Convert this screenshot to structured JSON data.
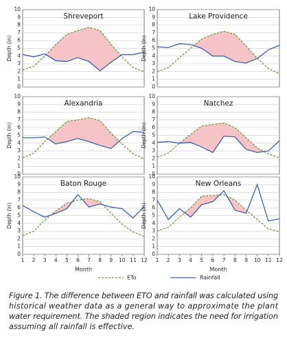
{
  "chart_data": [
    {
      "type": "line",
      "title": "Shreveport",
      "ylabel": "Depth (in)",
      "x": [
        1,
        2,
        3,
        4,
        5,
        6,
        7,
        8,
        9,
        10,
        11,
        12
      ],
      "xlim": [
        1,
        12
      ],
      "ylim": [
        0,
        10
      ],
      "yticks": [
        0,
        1,
        2,
        3,
        4,
        5,
        6,
        7,
        8,
        9,
        10
      ],
      "series": [
        {
          "name": "ETo",
          "color": "#6a9a3a",
          "values": [
            2.2,
            2.7,
            4.0,
            5.5,
            6.8,
            7.3,
            7.7,
            7.3,
            5.5,
            3.9,
            2.5,
            2.0
          ]
        },
        {
          "name": "Rainfall",
          "color": "#3b5fa8",
          "values": [
            4.2,
            3.9,
            4.3,
            3.4,
            3.3,
            3.8,
            3.3,
            2.1,
            3.2,
            4.2,
            4.2,
            4.5
          ]
        }
      ]
    },
    {
      "type": "line",
      "title": "Lake Providence",
      "ylabel": "Depth (in)",
      "x": [
        1,
        2,
        3,
        4,
        5,
        6,
        7,
        8,
        9,
        10,
        11,
        12
      ],
      "xlim": [
        1,
        12
      ],
      "ylim": [
        0,
        10
      ],
      "yticks": [
        0,
        1,
        2,
        3,
        4,
        5,
        6,
        7,
        8,
        9,
        10
      ],
      "series": [
        {
          "name": "ETo",
          "color": "#6a9a3a",
          "values": [
            2.0,
            2.5,
            3.8,
            5.0,
            6.2,
            6.8,
            7.2,
            6.8,
            5.3,
            3.7,
            2.4,
            1.7
          ]
        },
        {
          "name": "Rainfall",
          "color": "#3b5fa8",
          "values": [
            5.2,
            5.1,
            5.6,
            5.5,
            5.0,
            4.0,
            4.0,
            3.3,
            3.1,
            3.7,
            4.8,
            5.4
          ]
        }
      ]
    },
    {
      "type": "line",
      "title": "Alexandria",
      "ylabel": "Depth (in)",
      "x": [
        1,
        2,
        3,
        4,
        5,
        6,
        7,
        8,
        9,
        10,
        11,
        12
      ],
      "xlim": [
        1,
        12
      ],
      "ylim": [
        0,
        10
      ],
      "yticks": [
        0,
        1,
        2,
        3,
        4,
        5,
        6,
        7,
        8,
        9,
        10
      ],
      "series": [
        {
          "name": "ETo",
          "color": "#6a9a3a",
          "values": [
            2.1,
            2.7,
            4.2,
            5.5,
            6.8,
            7.0,
            7.3,
            6.9,
            5.3,
            3.9,
            2.6,
            2.0
          ]
        },
        {
          "name": "Rainfall",
          "color": "#3b5fa8",
          "values": [
            4.7,
            4.7,
            4.8,
            3.9,
            4.2,
            4.6,
            4.2,
            3.7,
            3.3,
            4.6,
            5.5,
            5.4
          ]
        }
      ]
    },
    {
      "type": "line",
      "title": "Natchez",
      "ylabel": "Depth (in)",
      "x": [
        1,
        2,
        3,
        4,
        5,
        6,
        7,
        8,
        9,
        10,
        11,
        12
      ],
      "xlim": [
        1,
        12
      ],
      "ylim": [
        0,
        10
      ],
      "yticks": [
        0,
        1,
        2,
        3,
        4,
        5,
        6,
        7,
        8,
        9,
        10
      ],
      "series": [
        {
          "name": "ETo",
          "color": "#6a9a3a",
          "values": [
            2.2,
            2.7,
            4.0,
            5.1,
            6.2,
            6.4,
            6.6,
            6.0,
            4.7,
            3.4,
            2.6,
            2.1
          ]
        },
        {
          "name": "Rainfall",
          "color": "#3b5fa8",
          "values": [
            4.1,
            4.2,
            4.0,
            4.1,
            3.5,
            2.8,
            4.9,
            4.8,
            3.2,
            2.8,
            3.0,
            4.3
          ]
        }
      ]
    },
    {
      "type": "line",
      "title": "Baton Rouge",
      "ylabel": "Depth (in)",
      "xlabel": "Month",
      "x": [
        1,
        2,
        3,
        4,
        5,
        6,
        7,
        8,
        9,
        10,
        11,
        12
      ],
      "xlim": [
        1,
        12
      ],
      "xticks": [
        1,
        2,
        3,
        4,
        5,
        6,
        7,
        8,
        9,
        10,
        11,
        12
      ],
      "ylim": [
        0,
        10
      ],
      "yticks": [
        0,
        1,
        2,
        3,
        4,
        5,
        6,
        7,
        8,
        9,
        10
      ],
      "series": [
        {
          "name": "ETo",
          "color": "#6a9a3a",
          "values": [
            2.4,
            3.0,
            4.4,
            5.6,
            6.6,
            7.0,
            7.2,
            6.8,
            5.3,
            3.9,
            2.9,
            2.3
          ]
        },
        {
          "name": "Rainfall",
          "color": "#3b5fa8",
          "values": [
            6.3,
            5.5,
            4.8,
            5.3,
            5.9,
            7.7,
            6.1,
            6.5,
            6.1,
            5.9,
            4.7,
            6.2
          ]
        }
      ]
    },
    {
      "type": "line",
      "title": "New Orleans",
      "ylabel": "Depth (in)",
      "xlabel": "Month",
      "x": [
        1,
        2,
        3,
        4,
        5,
        6,
        7,
        8,
        9,
        10,
        11,
        12
      ],
      "xlim": [
        1,
        12
      ],
      "xticks": [
        1,
        2,
        3,
        4,
        5,
        6,
        7,
        8,
        9,
        10,
        11,
        12
      ],
      "ylim": [
        0,
        10
      ],
      "yticks": [
        0,
        1,
        2,
        3,
        4,
        5,
        6,
        7,
        8,
        9,
        10
      ],
      "series": [
        {
          "name": "ETo",
          "color": "#6a9a3a",
          "values": [
            3.0,
            3.5,
            4.8,
            6.0,
            7.5,
            7.6,
            7.7,
            7.0,
            5.7,
            4.5,
            3.3,
            2.9
          ]
        },
        {
          "name": "Rainfall",
          "color": "#3b5fa8",
          "values": [
            7.0,
            4.5,
            5.9,
            4.8,
            6.4,
            6.8,
            8.2,
            5.7,
            5.3,
            9.0,
            4.3,
            4.6
          ]
        }
      ]
    }
  ],
  "caption": [
    "Figure 1. The difference between ETO and rainfall was calculated using",
    "historical weather data as a general way to approximate the plant",
    "water requirement. The shaded region indicates the need for irrigation",
    "assuming all rainfall is effective."
  ]
}
